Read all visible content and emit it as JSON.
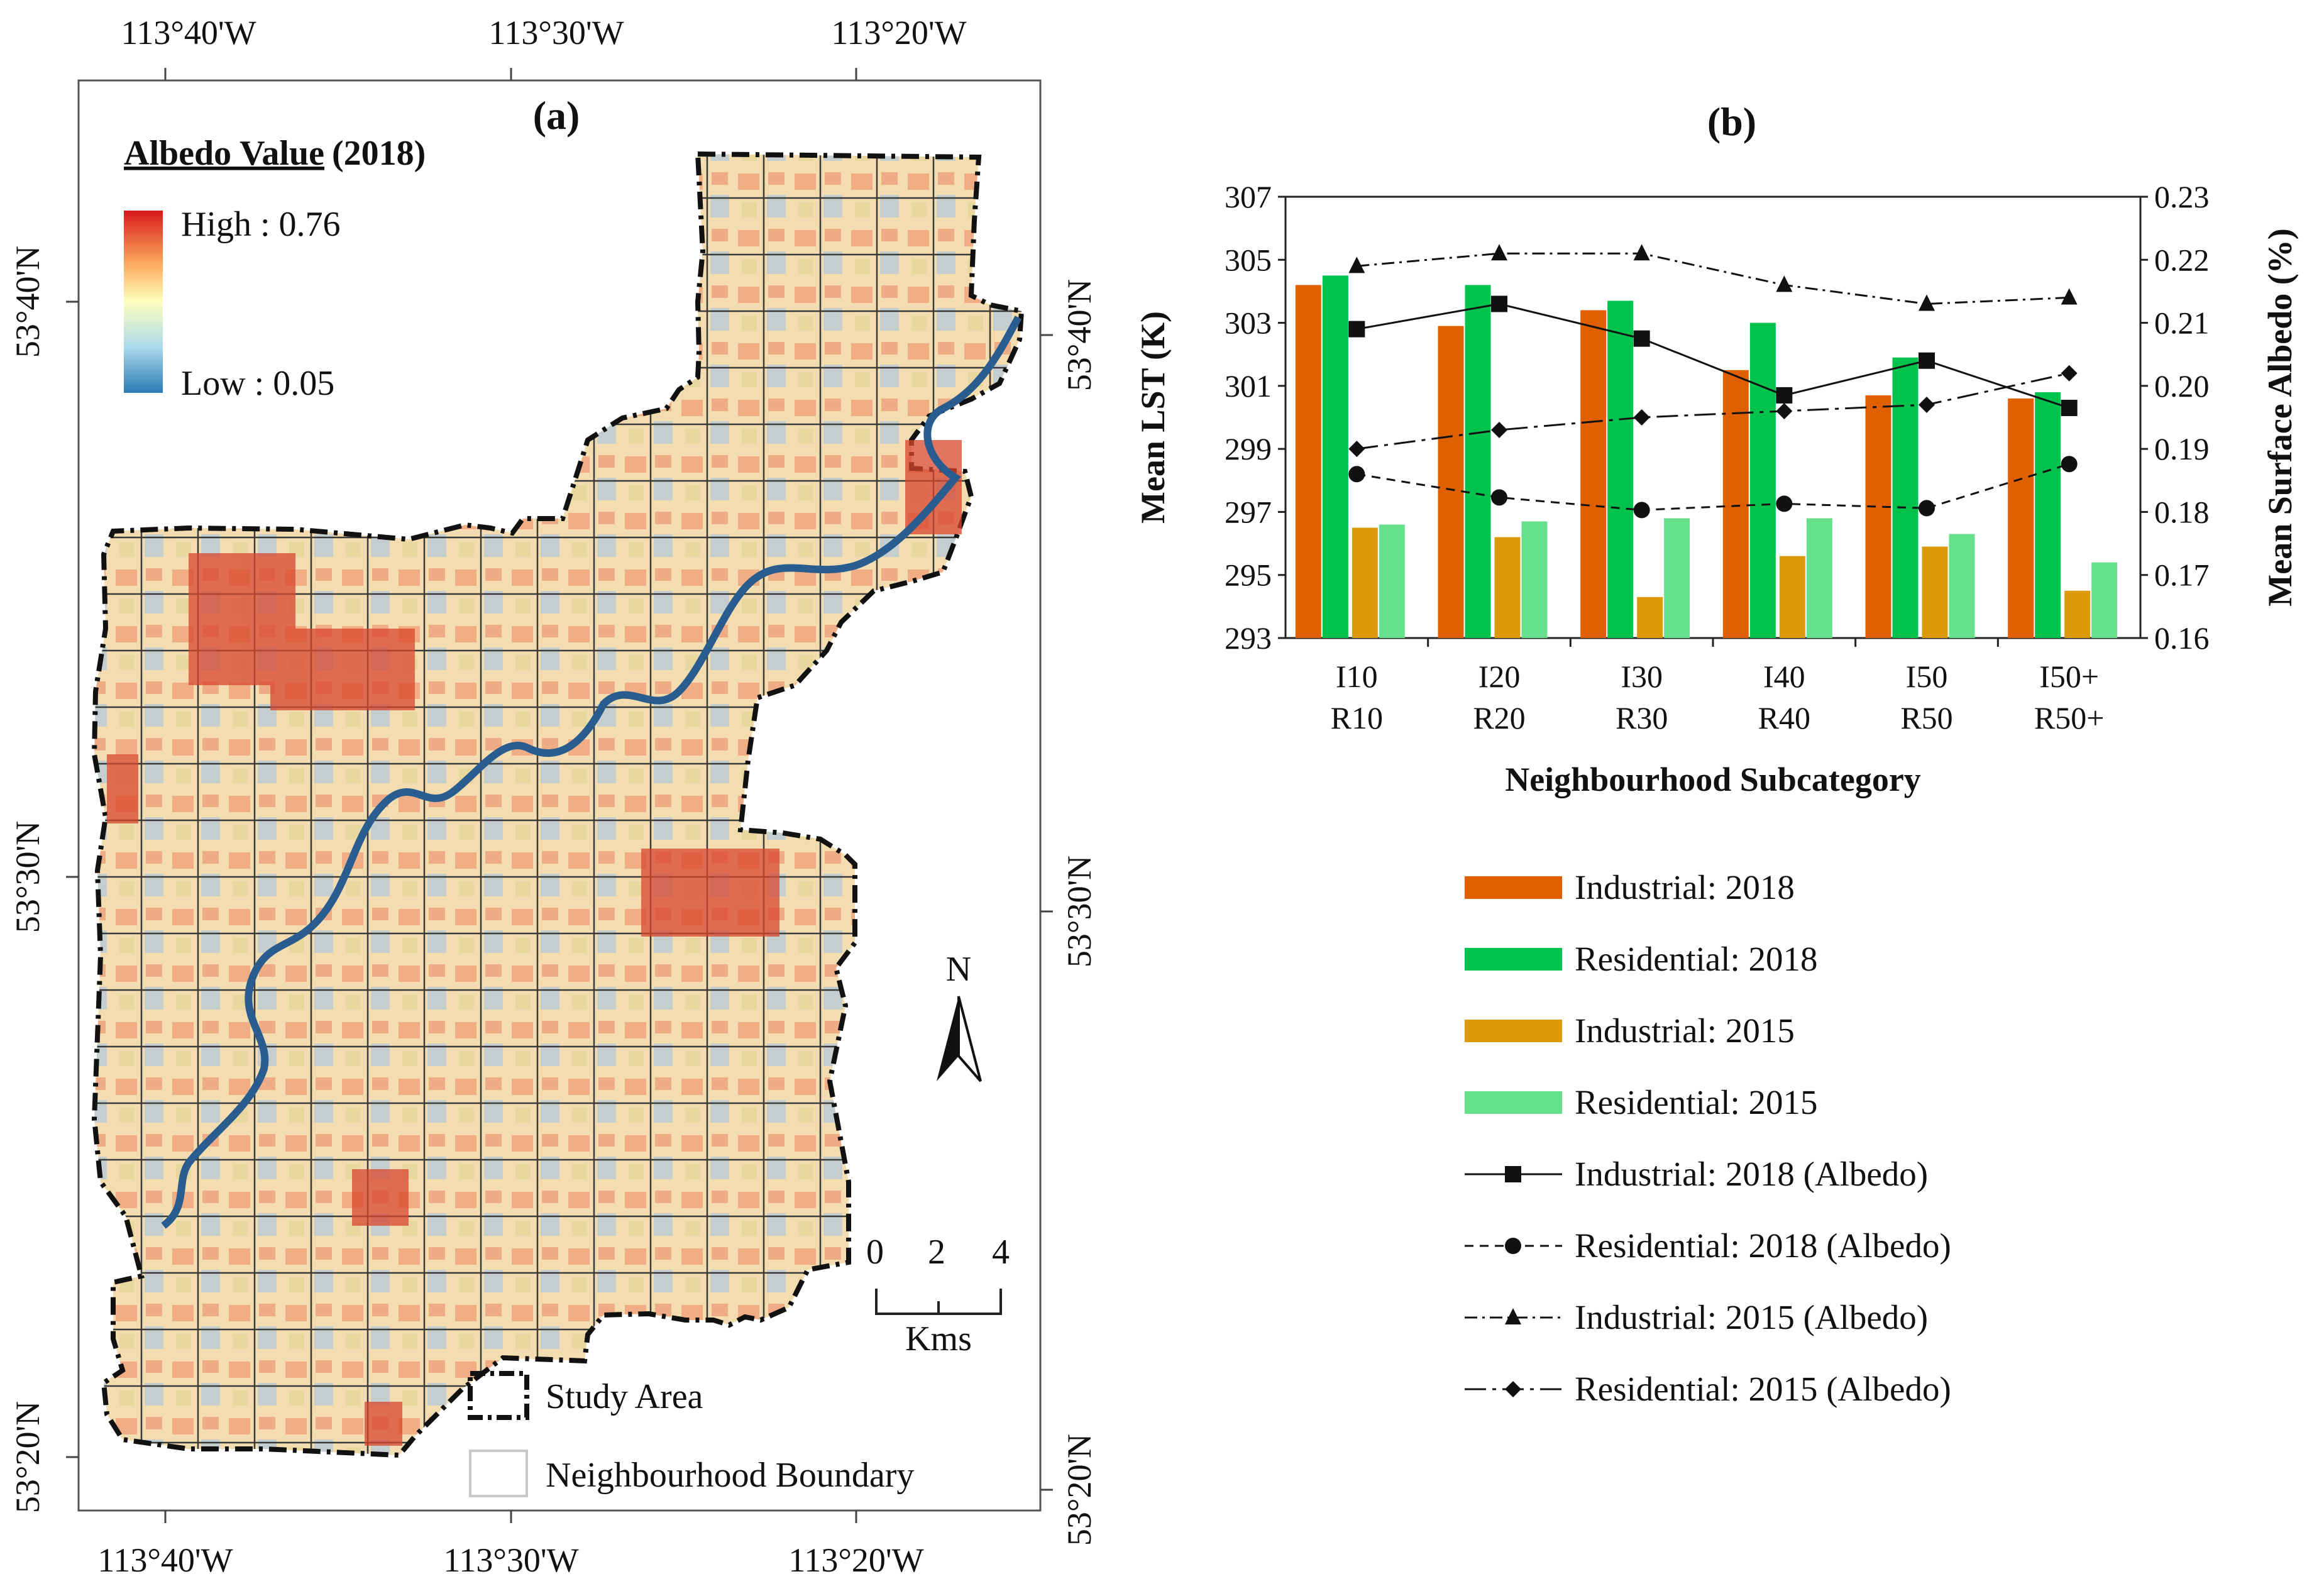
{
  "panel_a": {
    "label": "(a)",
    "legend_title_bold": "Albedo Value",
    "legend_title_year": "(2018)",
    "legend_high": "High : 0.76",
    "legend_low": "Low : 0.05",
    "ramp_colors": [
      "#d7191c",
      "#fdae61",
      "#ffffbf",
      "#abd9e9",
      "#2c7bb6"
    ],
    "top_longitudes": [
      "113°40'W",
      "113°30'W",
      "113°20'W"
    ],
    "bottom_longitudes": [
      "113°40'W",
      "113°30'W",
      "113°20'W"
    ],
    "left_latitudes": [
      "53°40'N",
      "53°30'N",
      "53°20'N"
    ],
    "right_latitudes": [
      "53°40'N",
      "53°30'N",
      "53°20'N"
    ],
    "north_label": "N",
    "scale_ticks": [
      "0",
      "2",
      "4"
    ],
    "scale_unit": "Kms",
    "legend_study_area": "Study Area",
    "legend_neighbourhood": "Neighbourhood Boundary"
  },
  "panel_b": {
    "label": "(b)"
  },
  "chart_data": {
    "type": "bar",
    "title": "(b)",
    "categories": [
      [
        "I10",
        "R10"
      ],
      [
        "I20",
        "R20"
      ],
      [
        "I30",
        "R30"
      ],
      [
        "I40",
        "R40"
      ],
      [
        "I50",
        "R50"
      ],
      [
        "I50+",
        "R50+"
      ]
    ],
    "xlabel": "Neighbourhood Subcategory",
    "ylabel": "Mean LST (K)",
    "ylim": [
      293,
      307
    ],
    "yticks": [
      "293",
      "295",
      "297",
      "299",
      "301",
      "303",
      "305",
      "307"
    ],
    "y2label": "Mean Surface Albedo (%)",
    "y2lim": [
      0.16,
      0.23
    ],
    "y2ticks": [
      "0.16",
      "0.17",
      "0.18",
      "0.19",
      "0.20",
      "0.21",
      "0.22",
      "0.23"
    ],
    "bar_series": [
      {
        "name": "Industrial: 2018",
        "color": "#e06000",
        "values": [
          304.2,
          302.9,
          303.4,
          301.5,
          300.7,
          300.6
        ]
      },
      {
        "name": "Residential: 2018",
        "color": "#00c34e",
        "values": [
          304.5,
          304.2,
          303.7,
          303.0,
          301.9,
          300.8
        ]
      },
      {
        "name": "Industrial: 2015",
        "color": "#dc9a0a",
        "values": [
          296.5,
          296.2,
          294.3,
          295.6,
          295.9,
          294.5
        ]
      },
      {
        "name": "Residential: 2015",
        "color": "#66e08a",
        "values": [
          296.6,
          296.7,
          296.8,
          296.8,
          296.3,
          295.4
        ]
      }
    ],
    "line_series": [
      {
        "name": "Industrial: 2018 (Albedo)",
        "marker": "square",
        "dash": "solid",
        "values": [
          0.209,
          0.213,
          0.2075,
          0.1985,
          0.204,
          0.1965
        ]
      },
      {
        "name": "Residential: 2018 (Albedo)",
        "marker": "circle",
        "dash": "dashed",
        "values": [
          0.186,
          0.1823,
          0.1803,
          0.1813,
          0.1806,
          0.1876
        ]
      },
      {
        "name": "Industrial: 2015 (Albedo)",
        "marker": "triangle",
        "dash": "dashdot",
        "values": [
          0.219,
          0.221,
          0.221,
          0.216,
          0.213,
          0.214
        ]
      },
      {
        "name": "Residential: 2015 (Albedo)",
        "marker": "diamond",
        "dash": "longdashdot",
        "values": [
          0.19,
          0.193,
          0.195,
          0.196,
          0.197,
          0.202
        ]
      }
    ],
    "legend_position": "below"
  }
}
